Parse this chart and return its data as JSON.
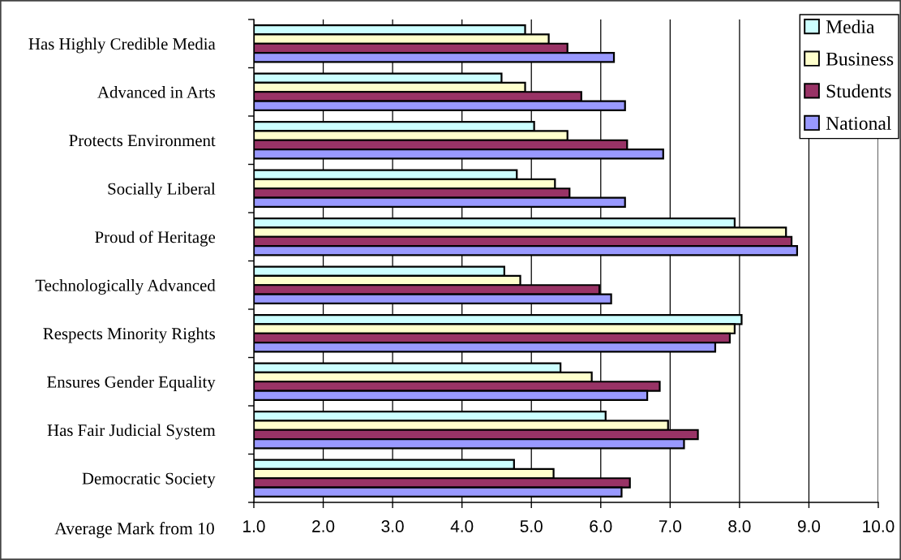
{
  "chart_data": {
    "type": "bar",
    "orientation": "horizontal",
    "xlabel": "Average Mark from 10",
    "categories": [
      "Has Highly Credible Media",
      "Advanced in Arts",
      "Protects Environment",
      "Socially Liberal",
      "Proud of Heritage",
      "Technologically Advanced",
      "Respects Minority Rights",
      "Ensures Gender Equality",
      "Has Fair Judicial System",
      "Democratic Society"
    ],
    "series": [
      {
        "name": "Media",
        "color": "#ccffff",
        "values": [
          4.91,
          4.57,
          5.04,
          4.79,
          7.93,
          4.61,
          8.03,
          5.42,
          6.07,
          4.75
        ]
      },
      {
        "name": "Business",
        "color": "#ffffcc",
        "values": [
          5.25,
          4.91,
          5.52,
          5.34,
          8.67,
          4.84,
          7.93,
          5.87,
          6.97,
          5.32
        ]
      },
      {
        "name": "Students",
        "color": "#993366",
        "values": [
          5.52,
          5.72,
          6.38,
          5.55,
          8.75,
          5.98,
          7.86,
          6.85,
          7.4,
          6.42
        ]
      },
      {
        "name": "National",
        "color": "#9999ff",
        "values": [
          6.19,
          6.35,
          6.9,
          6.35,
          8.83,
          6.15,
          7.65,
          6.67,
          7.2,
          6.3
        ]
      }
    ],
    "xlim": [
      1,
      10
    ],
    "xticks": [
      {
        "value": 1,
        "label": "1.0"
      },
      {
        "value": 2,
        "label": "2.0"
      },
      {
        "value": 3,
        "label": "3.0"
      },
      {
        "value": 4,
        "label": "4.0"
      },
      {
        "value": 5,
        "label": "5.0"
      },
      {
        "value": 6,
        "label": "6.0"
      },
      {
        "value": 7,
        "label": "7.0"
      },
      {
        "value": 8,
        "label": "8.0"
      },
      {
        "value": 9,
        "label": "9.0"
      },
      {
        "value": 10,
        "label": "10.0"
      }
    ],
    "grid": "x",
    "legend": "top right"
  }
}
